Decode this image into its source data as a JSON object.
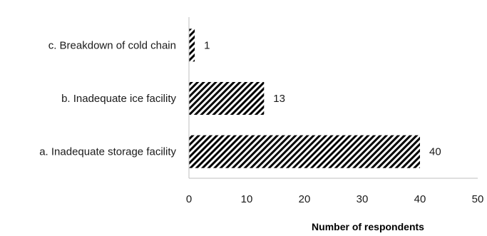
{
  "chart_data": {
    "type": "bar",
    "orientation": "horizontal",
    "categories": [
      "a. Inadequate storage facility",
      "b. Inadequate ice facility",
      "c. Breakdown of cold chain"
    ],
    "values": [
      40,
      13,
      1
    ],
    "data_labels": [
      "40",
      "13",
      "1"
    ],
    "xlabel": "Number of respondents",
    "xlim": [
      0,
      50
    ],
    "xticks": [
      0,
      10,
      20,
      30,
      40,
      50
    ],
    "grid": false,
    "legend": "none",
    "bar_pattern": "diagonal-hatch",
    "colors": {
      "bar_fill": "#ffffff",
      "hatch": "#000000",
      "axis": "#bfbfbf",
      "text": "#1a1a1a"
    }
  }
}
